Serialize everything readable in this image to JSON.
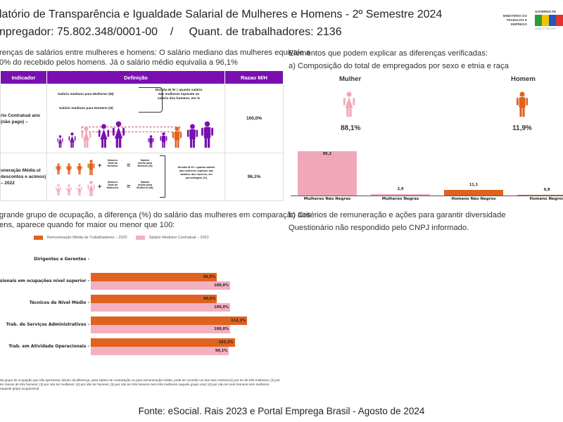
{
  "header": {
    "title": "latório de Transparência e Igualdade Salarial de Mulheres e Homens - 2º Semestre 2024",
    "employer": "npregador: 75.802.348/0001-00",
    "separator": "/",
    "workers": "Quant. de trabalhadores: 2136"
  },
  "logos": {
    "ministry": "MINISTÉRIO DO TRABALHO E EMPREGO",
    "gov": "GOVERNO FE",
    "gov_sub": "UNIÃO E RECONS"
  },
  "left": {
    "intro_line1": "renças de salários entre mulheres e homens: O salário mediano das mulheres equivale a",
    "intro_line2": "0% do recebido pelos homens. Já o salário médio equivalia a 96,1%",
    "table": {
      "headers": [
        "Indicador",
        "Definição",
        "Razao M/H"
      ],
      "rows": [
        {
          "indicator": "rio Contratual ano (não pago) –",
          "def_a": "Salário mediano para Mulheres (M)",
          "def_b": "Salário mediano para Homens (H)",
          "def_note": "Divisão M /H = quanto salário das mulheres equivale ao salário dos homens, em %",
          "ratio": "100,0%"
        },
        {
          "indicator": "uneração Média ul descontos e acimos) – 2022",
          "def_a": "Número Total de Homens",
          "def_b": "Número Total de Mulheres",
          "def_a2": "Salário médio para Homens (H)",
          "def_b2": "Salário médio para Mulheres (M)",
          "def_note": "Divisão M /H = quanto salário das mulheres equivale aos salários dos homens, em porcentagem (%)",
          "ratio": "96,1%",
          "plus": "+",
          "eq": "="
        }
      ]
    },
    "occupation_line1": "grande grupo de ocupação, a diferença (%) do salário das mulheres em comparação aos",
    "occupation_line2": "ens, aparece quando for maior ou menor que 100:",
    "footnote": "da grupo de ocupação que não apresenta cálculo da diferença, para salário de contratação ou para remuneração média, pode ter ocorrido um dos seis motivos:(1) por ter de três mulheres; (2) por ter menos de três homens; (3) por não ter mulheres; (4) por não ter homens; (5) por não ter três homens nem três mulheres naquele grupo onal; (6) por não ter nem homens nem mulheres naquele grupo ocupacional."
  },
  "right": {
    "heading": "Elementos que podem explicar as diferenças verificadas:",
    "a_title": "a) Composição do total de empregados por sexo e etnia e raça",
    "woman_label": "Mulher",
    "woman_pct": "88,1%",
    "man_label": "Homem",
    "man_pct": "11,9%",
    "b_title": "b) Critérios de remuneração e ações para garantir diversidade",
    "b_text": "Questionário não respondido pelo CNPJ informado."
  },
  "chart_data": [
    {
      "type": "bar",
      "categories": [
        "Mulheres Não Negras",
        "Mulheres Negras",
        "Homens Não Negros",
        "Homens Negros"
      ],
      "values": [
        85.2,
        2.9,
        11.1,
        0.8
      ],
      "labels": [
        "85,2",
        "2,9",
        "11,1",
        "0,8"
      ],
      "colors": [
        "#f0a8b8",
        "#f0a8b8",
        "#e0621f",
        "#e0621f"
      ]
    },
    {
      "type": "bar",
      "orientation": "horizontal",
      "categories": [
        "Dirigentes e Gerentes",
        "issionais em ocupações nível superior",
        "Técnicos de Nível Médio",
        "Trab. de Serviços Administrativos",
        "Trab. em Atividade Operacionais"
      ],
      "series": [
        {
          "name": "Remuneração Média de Trabalhadores – 2022",
          "color": "#e0621f",
          "values": [
            null,
            90.5,
            90.6,
            112.1,
            103.3
          ],
          "labels": [
            "",
            "90,5%",
            "90,6%",
            "112,1%",
            "103,3%"
          ]
        },
        {
          "name": "Salário Mediano Contratual – 2022",
          "color": "#f2b0c0",
          "values": [
            null,
            100.0,
            100.0,
            100.0,
            99.1
          ],
          "labels": [
            "",
            "100,0%",
            "100,0%",
            "100,0%",
            "99,1%"
          ]
        }
      ]
    }
  ],
  "footer": "Fonte: eSocial. Rais 2023 e Portal Emprega Brasil - Agosto de 2024",
  "colors": {
    "purple": "#7a0fb0",
    "orange": "#e0621f",
    "pink": "#f0a8b8"
  }
}
